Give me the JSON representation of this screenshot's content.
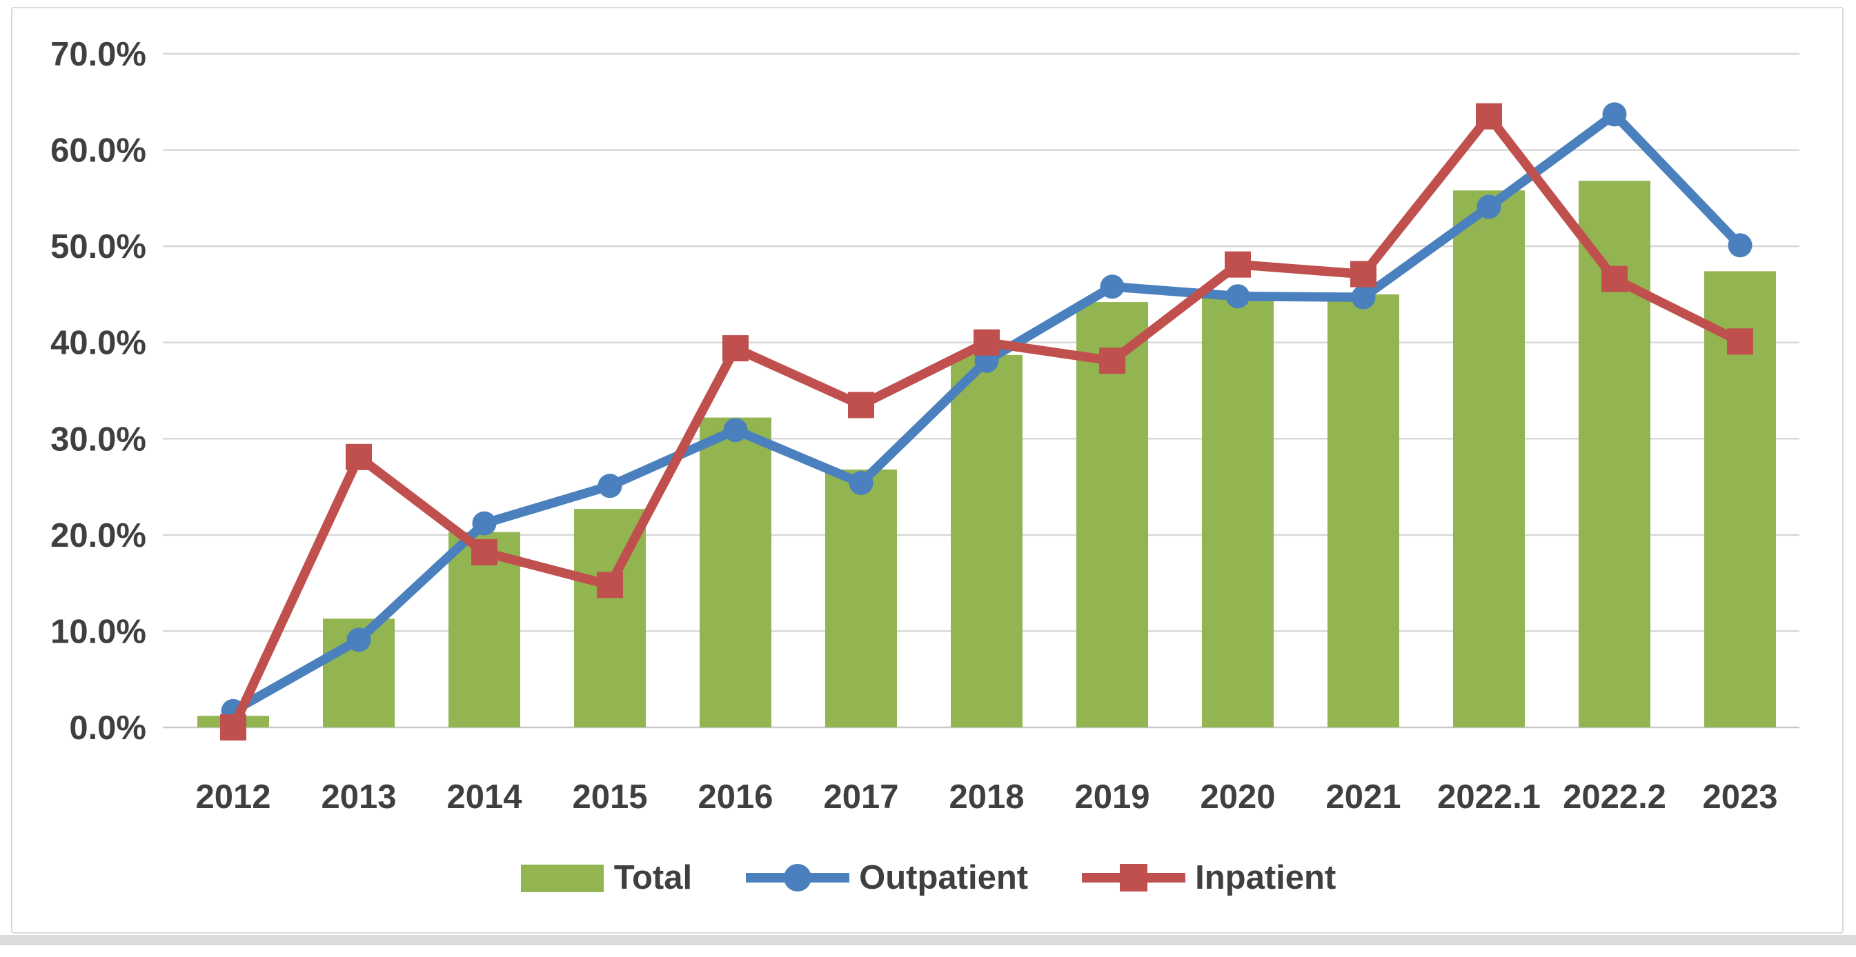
{
  "chart_data": {
    "type": "combo-bar-line",
    "title": "",
    "xlabel": "",
    "ylabel": "",
    "categories": [
      "2012",
      "2013",
      "2014",
      "2015",
      "2016",
      "2017",
      "2018",
      "2019",
      "2020",
      "2021",
      "2022.1",
      "2022.2",
      "2023"
    ],
    "series": [
      {
        "name": "Total",
        "type": "bar",
        "color": "#92b551",
        "values": [
          1.2,
          11.3,
          20.3,
          22.7,
          32.2,
          26.8,
          38.7,
          44.2,
          44.9,
          45.0,
          55.8,
          56.8,
          47.4
        ]
      },
      {
        "name": "Outpatient",
        "type": "line",
        "marker": "circle",
        "color": "#4a80bd",
        "values": [
          1.7,
          9.1,
          21.2,
          25.1,
          30.9,
          25.4,
          38.1,
          45.8,
          44.8,
          44.7,
          54.1,
          63.7,
          50.1
        ]
      },
      {
        "name": "Inpatient",
        "type": "line",
        "marker": "square",
        "color": "#c0504d",
        "values": [
          0.0,
          28.1,
          18.2,
          14.8,
          39.4,
          33.5,
          40.0,
          38.1,
          48.1,
          47.1,
          63.5,
          46.6,
          40.1
        ]
      }
    ],
    "y_axis": {
      "min": 0,
      "max": 70,
      "step": 10,
      "tick_labels": [
        "70.0%",
        "60.0%",
        "50.0%",
        "40.0%",
        "30.0%",
        "20.0%",
        "10.0%",
        "0.0%"
      ]
    },
    "grid": true,
    "legend_position": "bottom"
  },
  "style_colors": {
    "gridline": "#d7d7d7",
    "zero_line": "#c9c9c9",
    "axis_text": "#3f3f3f",
    "frame_border": "#dadada",
    "background": "#ffffff"
  }
}
